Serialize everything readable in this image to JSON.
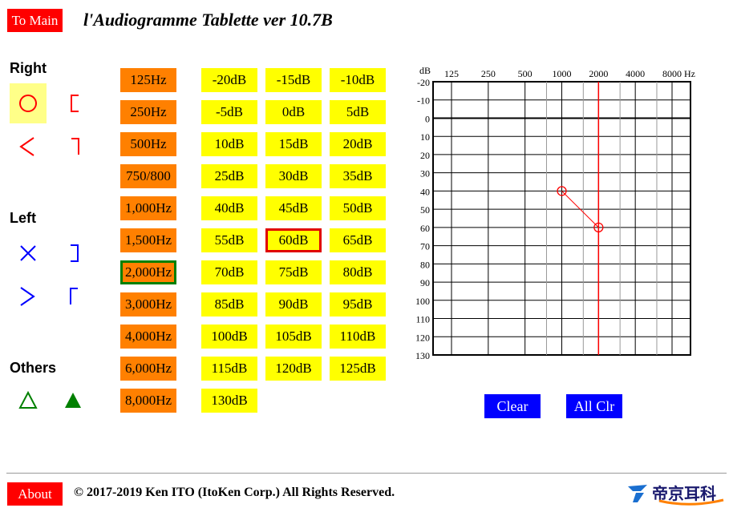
{
  "header": {
    "to_main_label": "To Main",
    "title": "l'Audiogramme Tablette ver 10.7B"
  },
  "sections": {
    "right": "Right",
    "left": "Left",
    "others": "Others"
  },
  "frequencies": [
    "125Hz",
    "250Hz",
    "500Hz",
    "750/800",
    "1,000Hz",
    "1,500Hz",
    "2,000Hz",
    "3,000Hz",
    "4,000Hz",
    "6,000Hz",
    "8,000Hz"
  ],
  "selected_frequency": "2,000Hz",
  "db_levels": [
    "-20dB",
    "-15dB",
    "-10dB",
    "-5dB",
    "0dB",
    "5dB",
    "10dB",
    "15dB",
    "20dB",
    "25dB",
    "30dB",
    "35dB",
    "40dB",
    "45dB",
    "50dB",
    "55dB",
    "60dB",
    "65dB",
    "70dB",
    "75dB",
    "80dB",
    "85dB",
    "90dB",
    "95dB",
    "100dB",
    "105dB",
    "110dB",
    "115dB",
    "120dB",
    "125dB",
    "130dB"
  ],
  "selected_db": "60dB",
  "chart_data": {
    "type": "line",
    "x_unit": "Hz",
    "y_unit": "dB",
    "x_ticks": [
      "125",
      "250",
      "500",
      "1000",
      "2000",
      "4000",
      "8000"
    ],
    "y_ticks": [
      -20,
      -10,
      0,
      10,
      20,
      30,
      40,
      50,
      60,
      70,
      80,
      90,
      100,
      110,
      120,
      130
    ],
    "ylim": [
      -20,
      130
    ],
    "y_inverted": true,
    "cursor_frequency_hz": 2000,
    "series": [
      {
        "ear": "right",
        "symbol": "circle",
        "color": "#ff0000",
        "points": [
          {
            "x": 1000,
            "y": 40
          },
          {
            "x": 2000,
            "y": 60
          }
        ]
      }
    ]
  },
  "buttons": {
    "clear": "Clear",
    "all_clear": "All Clr"
  },
  "footer": {
    "about": "About",
    "copyright": "© 2017-2019 Ken ITO (ItoKen Corp.) All Rights Reserved.",
    "logo": "帝京耳科"
  },
  "colors": {
    "right_ear": "#ff0000",
    "left_ear": "#0000ff",
    "other": "#008000",
    "freq_button": "#ff8000",
    "db_button": "#ffff00"
  }
}
